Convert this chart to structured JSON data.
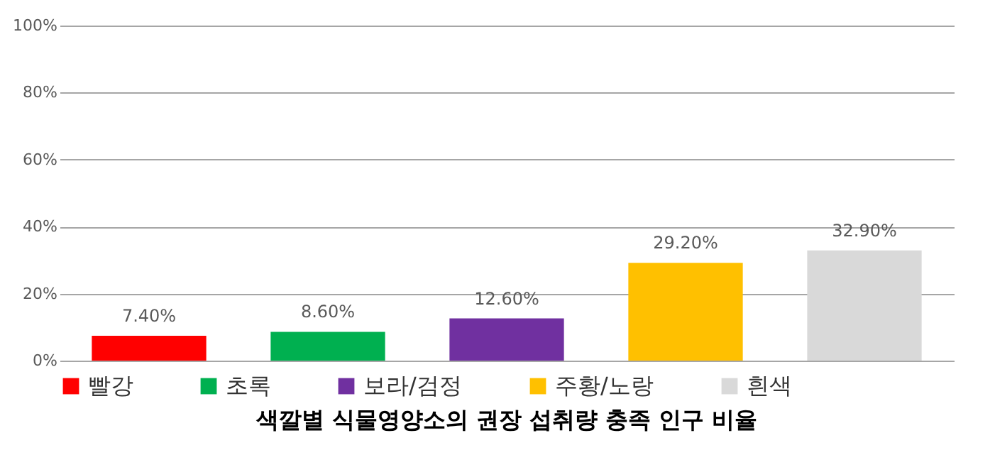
{
  "chart_data": {
    "type": "bar",
    "title": "색깔별 식물영양소의 권장 섭취량 충족 인구 비율",
    "categories": [
      null,
      null,
      null,
      null,
      null
    ],
    "series": [
      {
        "name": "빨강",
        "color": "#ff0000",
        "values": [
          7.4,
          null,
          null,
          null,
          null
        ],
        "value_labels": [
          "7.40%",
          null,
          null,
          null,
          null
        ]
      },
      {
        "name": "초록",
        "color": "#00b050",
        "values": [
          null,
          8.6,
          null,
          null,
          null
        ],
        "value_labels": [
          null,
          "8.60%",
          null,
          null,
          null
        ]
      },
      {
        "name": "보라/검정",
        "color": "#7030a0",
        "values": [
          null,
          null,
          12.6,
          null,
          null
        ],
        "value_labels": [
          null,
          null,
          "12.60%",
          null,
          null
        ]
      },
      {
        "name": "주황/노랑",
        "color": "#ffc000",
        "values": [
          null,
          null,
          null,
          29.2,
          null
        ],
        "value_labels": [
          null,
          null,
          null,
          "29.20%",
          null
        ]
      },
      {
        "name": "흰색",
        "color": "#d9d9d9",
        "values": [
          null,
          null,
          null,
          null,
          32.9
        ],
        "value_labels": [
          null,
          null,
          null,
          null,
          "32.90%"
        ]
      }
    ],
    "ylim": [
      0,
      100
    ],
    "yticks": [
      {
        "value": 0,
        "label": "0%"
      },
      {
        "value": 20,
        "label": "20%"
      },
      {
        "value": 40,
        "label": "40%"
      },
      {
        "value": 60,
        "label": "60%"
      },
      {
        "value": 80,
        "label": "80%"
      },
      {
        "value": 100,
        "label": "100%"
      }
    ],
    "grid": "y",
    "legend": "bottom"
  }
}
